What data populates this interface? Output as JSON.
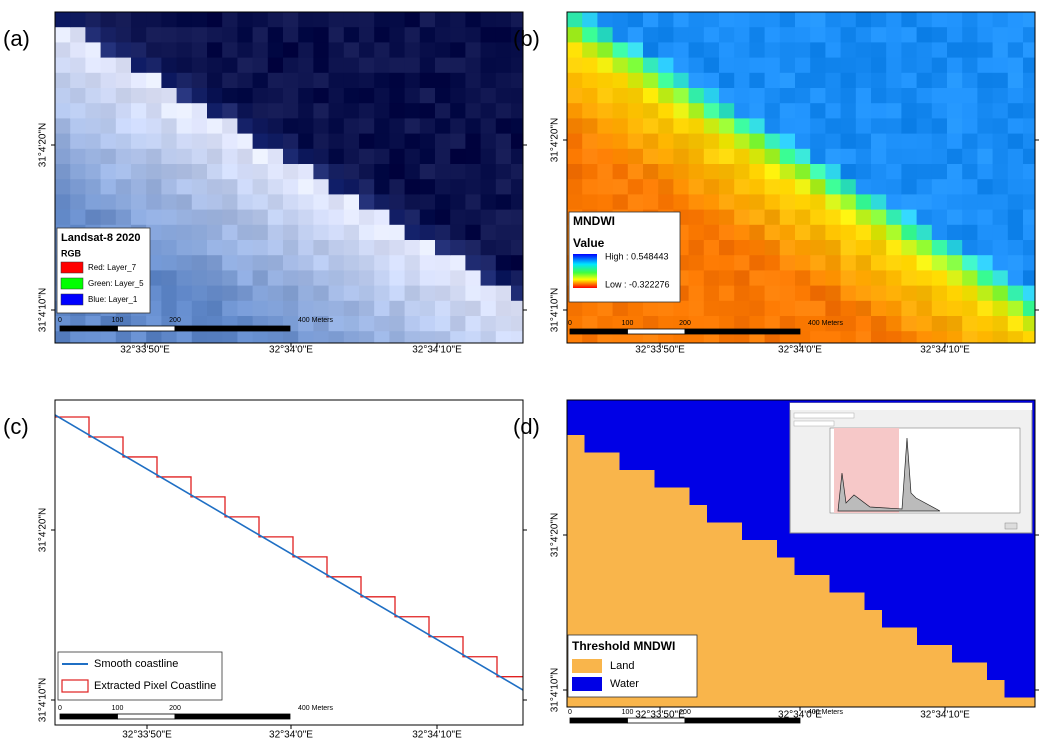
{
  "panels": [
    {
      "label": "(a)",
      "x_ticks": [
        "32°33'50\"E",
        "32°34'0\"E",
        "32°34'10\"E"
      ],
      "y_ticks": [
        "31°4'20\"N",
        "31°4'10\"N"
      ],
      "legend": {
        "title": "Landsat-8 2020",
        "subtitle": "RGB",
        "items": [
          "Red:   Layer_7",
          "Green: Layer_5",
          "Blue:   Layer_1"
        ]
      },
      "scale_labels": [
        "0",
        "100",
        "200",
        "400 Meters"
      ]
    },
    {
      "label": "(b)",
      "x_ticks": [
        "32°33'50\"E",
        "32°34'0\"E",
        "32°34'10\"E"
      ],
      "y_ticks": [
        "31°4'20\"N",
        "31°4'10\"N"
      ],
      "legend": {
        "title": "MNDWI",
        "subtitle": "Value",
        "items": [
          "High : 0.548443",
          "Low : -0.322276"
        ]
      },
      "scale_labels": [
        "0",
        "100",
        "200",
        "400 Meters"
      ]
    },
    {
      "label": "(c)",
      "x_ticks": [
        "32°33'50\"E",
        "32°34'0\"E",
        "32°34'10\"E"
      ],
      "y_ticks": [
        "31°4'20\"N",
        "31°4'10\"N"
      ],
      "legend": {
        "items": [
          "Smooth coastline",
          "Extracted Pixel Coastline"
        ]
      },
      "scale_labels": [
        "0",
        "100",
        "200",
        "400 Meters"
      ]
    },
    {
      "label": "(d)",
      "x_ticks": [
        "32°33'50\"E",
        "32°34'0\"E",
        "32°34'10\"E"
      ],
      "y_ticks": [
        "31°4'20\"N",
        "31°4'10\"N"
      ],
      "legend": {
        "title": "Threshold MNDWI",
        "items": [
          "Land",
          "Water"
        ]
      },
      "scale_labels": [
        "0",
        "100",
        "200",
        "400 Meters"
      ]
    }
  ]
}
